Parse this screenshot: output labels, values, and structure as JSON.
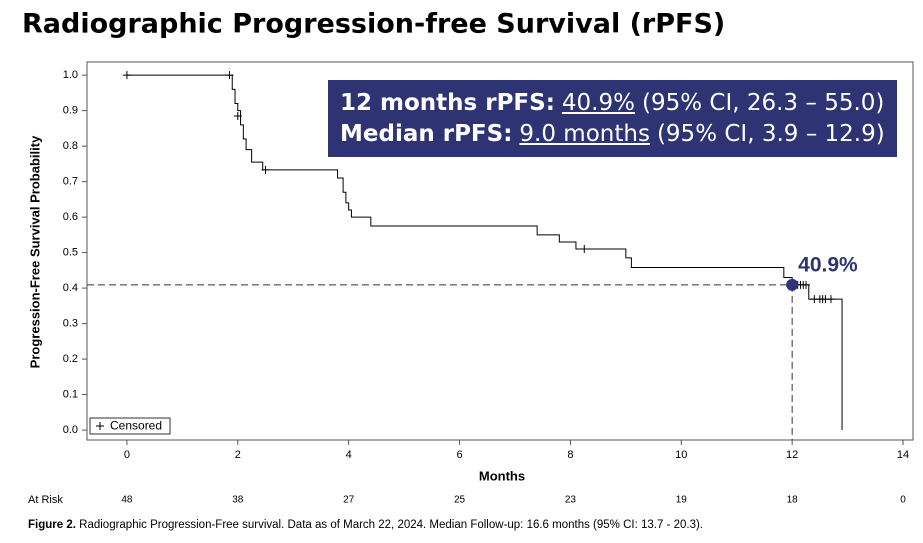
{
  "chart_data": {
    "type": "step",
    "title": "Radiographic Progression-free Survival (rPFS)",
    "x_label": "Months",
    "y_label": "Progression-Free Survival Probability",
    "xlim": [
      -0.72,
      14.18
    ],
    "ylim": [
      -0.028,
      1.037
    ],
    "xticks": [
      0,
      2,
      4,
      6,
      8,
      10,
      12,
      14
    ],
    "yticks": [
      {
        "value": 0,
        "label": "0.0"
      },
      0.1,
      0.2,
      0.3,
      0.4,
      0.5,
      0.6,
      0.7,
      0.8,
      0.9,
      {
        "value": 1,
        "label": "1.0"
      }
    ],
    "series": [
      {
        "type": "step",
        "color": "#000000",
        "x": [
          0,
          1.85,
          1.9,
          1.95,
          2.0,
          2.05,
          2.1,
          2.15,
          2.25,
          2.45,
          3.8,
          3.9,
          3.95,
          4.0,
          4.05,
          4.4,
          7.4,
          7.8,
          8.1,
          9.0,
          9.1,
          11.85,
          12.0,
          12.3,
          12.9
        ],
        "values": [
          1.0,
          1.0,
          0.96,
          0.92,
          0.9,
          0.86,
          0.82,
          0.79,
          0.755,
          0.733,
          0.71,
          0.67,
          0.64,
          0.62,
          0.6,
          0.575,
          0.55,
          0.53,
          0.51,
          0.485,
          0.458,
          0.43,
          0.409,
          0.369,
          0.0
        ]
      },
      {
        "type": "scatter",
        "name": "Censored",
        "marker": "+",
        "color": "#000000",
        "x": [
          0,
          1.85,
          2.0,
          2.5,
          8.25,
          12.05,
          12.1,
          12.15,
          12.2,
          12.25,
          12.4,
          12.5,
          12.55,
          12.6,
          12.7
        ],
        "values": [
          1.0,
          1.0,
          0.885,
          0.733,
          0.51,
          0.409,
          0.409,
          0.409,
          0.409,
          0.409,
          0.369,
          0.369,
          0.369,
          0.369,
          0.369
        ]
      }
    ],
    "highlight": {
      "x": 12,
      "y": 0.409,
      "label": "40.9%",
      "color": "#2e3374"
    },
    "info_box": {
      "color": "#2e3374",
      "lines": [
        [
          "12 months rPFS:",
          "40.9%",
          "(95% CI, 26.3 – 55.0)"
        ],
        [
          "Median rPFS:",
          "9.0 months",
          "(95% CI, 3.9 – 12.9)"
        ]
      ]
    },
    "legend": "lower left",
    "at_risk": {
      "label": "At Risk",
      "values": [
        48,
        38,
        27,
        25,
        23,
        19,
        18,
        0
      ]
    },
    "caption": {
      "lead": "Figure 2.",
      "text": "Radiographic Progression-Free survival. Data as of March 22, 2024. Median Follow-up: 16.6 months (95% CI: 13.7 - 20.3)."
    }
  }
}
